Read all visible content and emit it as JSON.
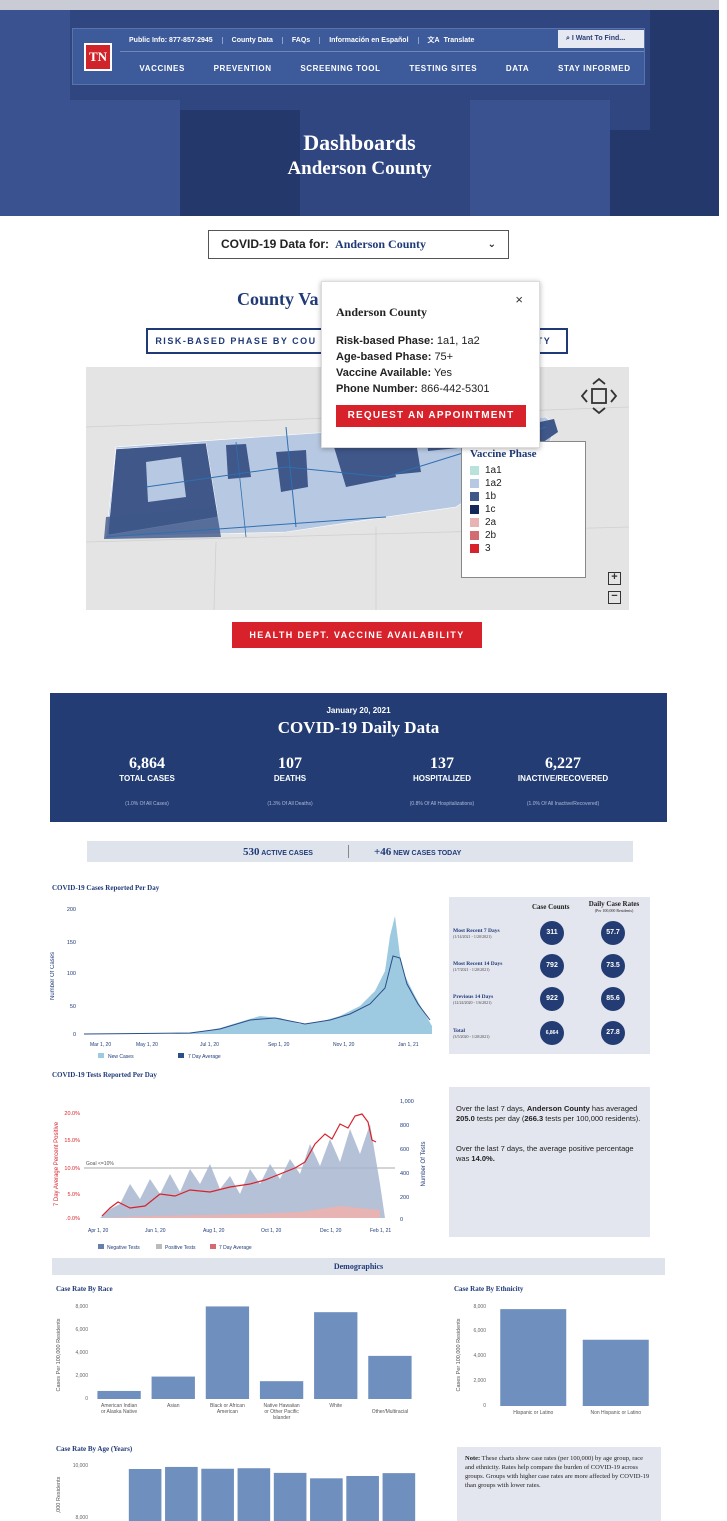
{
  "header": {
    "logo": "TN",
    "util": [
      "Public Info: 877-857-2945",
      "County Data",
      "FAQs",
      "Información en Español",
      "Translate"
    ],
    "find": "I Want To Find...",
    "nav": [
      "VACCINES",
      "PREVENTION",
      "SCREENING TOOL",
      "TESTING SITES",
      "DATA",
      "STAY INFORMED"
    ],
    "title": "Dashboards",
    "subtitle": "Anderson County"
  },
  "county_select": {
    "label": "COVID-19 Data for:",
    "value": "Anderson County"
  },
  "vaccine": {
    "title": "County Va",
    "btn1": "RISK-BASED PHASE BY COU",
    "btn2": "TY",
    "legend_title": "Vaccine Phase",
    "legend": [
      {
        "label": "1a1",
        "color": "#b9e3da"
      },
      {
        "label": "1a2",
        "color": "#b7c9e2"
      },
      {
        "label": "1b",
        "color": "#3f5789"
      },
      {
        "label": "1c",
        "color": "#15285a"
      },
      {
        "label": "2a",
        "color": "#e7b3b3"
      },
      {
        "label": "2b",
        "color": "#d36b72"
      },
      {
        "label": "3",
        "color": "#d7222b"
      }
    ],
    "popup": {
      "title": "Anderson County",
      "rows": [
        {
          "k": "Risk-based Phase:",
          "v": "1a1, 1a2"
        },
        {
          "k": "Age-based Phase:",
          "v": "75+"
        },
        {
          "k": "Vaccine Available:",
          "v": "Yes"
        },
        {
          "k": "Phone Number:",
          "v": "866-442-5301"
        }
      ],
      "button": "REQUEST AN APPOINTMENT"
    },
    "availability_btn": "HEALTH DEPT. VACCINE AVAILABILITY"
  },
  "daily": {
    "date": "January 20, 2021",
    "title": "COVID-19 Daily Data",
    "stats": [
      {
        "n": "6,864",
        "l": "TOTAL CASES",
        "s": "(1.0% Of All Cases)"
      },
      {
        "n": "107",
        "l": "DEATHS",
        "s": "(1.3% Of All Deaths)"
      },
      {
        "n": "137",
        "l": "HOSPITALIZED",
        "s": "(0.8% Of All Hospitalizations)"
      },
      {
        "n": "6,227",
        "l": "INACTIVE/RECOVERED",
        "s": "(1.0% Of All Inactive/Recovered)"
      }
    ],
    "active_n": "530",
    "active_l": "ACTIVE CASES",
    "new_n": "+46",
    "new_l": "NEW CASES TODAY"
  },
  "cases_chart": {
    "title": "COVID-19 Cases Reported Per Day",
    "ylabel": "Number Of Cases",
    "yticks": [
      "200",
      "150",
      "100",
      "50",
      "0"
    ],
    "xticks": [
      "Mar 1, 20",
      "May 1, 20",
      "Jul 1, 20",
      "Sep 1, 20",
      "Nov 1, 20",
      "Jan 1, 21"
    ],
    "legend": [
      "New Cases",
      "7 Day Average"
    ]
  },
  "rates": {
    "h1": "Case Counts",
    "h2": "Daily Case Rates",
    "h2sub": "(Per 100,000 Residents)",
    "rows": [
      {
        "l": "Most Recent 7 Days",
        "d": "(1/14/2021 - 1/20/2021)",
        "c": "311",
        "r": "57.7"
      },
      {
        "l": "Most Recent 14 Days",
        "d": "(1/7/2021 - 1/20/2021)",
        "c": "792",
        "r": "73.5"
      },
      {
        "l": "Previous 14 Days",
        "d": "(12/24/2020 - 1/6/2021)",
        "c": "922",
        "r": "85.6"
      },
      {
        "l": "Total",
        "d": "(3/5/2020 - 1/20/2021)",
        "c": "6,864",
        "r": "27.8"
      }
    ]
  },
  "tests_chart": {
    "title": "COVID-19 Tests Reported Per Day",
    "ylabel_left": "7 Day Average Percent Positive",
    "ylabel_right": "Number Of Tests",
    "yticks_left": [
      "20.0%",
      "15.0%",
      "10.0%",
      "5.0%",
      ".0.0%"
    ],
    "yticks_right": [
      "1,000",
      "800",
      "600",
      "400",
      "200",
      "0"
    ],
    "xticks": [
      "Apr 1, 20",
      "Jun 1, 20",
      "Aug 1, 20",
      "Oct 1, 20",
      "Dec 1, 20",
      "Feb 1, 21"
    ],
    "goal": "Goal <=10%",
    "legend": [
      "Negative Tests",
      "Positive Tests",
      "7 Day Average"
    ]
  },
  "tests_note": {
    "p1a": "Over the last 7 days, ",
    "p1b": "Anderson County",
    "p1c": " has averaged ",
    "p1d": "205.0",
    "p1e": " tests per day (",
    "p1f": "266.3",
    "p1g": " tests per 100,000 residents).",
    "p2a": "Over the last 7 days, the average positive percentage was ",
    "p2b": "14.0%."
  },
  "demographics": {
    "title": "Demographics",
    "race_title": "Case Rate By Race",
    "race_ylabel": "Cases Per 100,000 Residents",
    "race_yticks": [
      "8,000",
      "6,000",
      "4,000",
      "2,000",
      "0"
    ],
    "ethnicity_title": "Case Rate By Ethnicity",
    "ethnicity_ylabel": "Cases Per 100,000 Residents",
    "ethnicity_yticks": [
      "8,000",
      "6,000",
      "4,000",
      "2,000",
      "0"
    ],
    "age_title": "Case Rate By Age (Years)",
    "age_ylabel": ",000 Residents",
    "age_yticks": [
      "10,000",
      "8,000"
    ],
    "note_b": "Note:",
    "note": " These charts show case rates (per 100,000) by age group, race and ethnicity. Rates help compare the burden of COVID-19 across groups. Groups with higher case rates are more affected by COVID-19 than groups with lower rates."
  },
  "chart_data": [
    {
      "type": "bar",
      "title": "Case Rate By Race",
      "ylabel": "Cases Per 100,000 Residents",
      "ylim": [
        0,
        8000
      ],
      "categories": [
        "American Indian or Alaska Native",
        "Asian",
        "Black or African American",
        "Native Hawaiian or Other Pacific Islander",
        "White",
        "Other/Multiracial"
      ],
      "values": [
        700,
        1950,
        8050,
        1550,
        7550,
        3750
      ]
    },
    {
      "type": "bar",
      "title": "Case Rate By Ethnicity",
      "ylabel": "Cases Per 100,000 Residents",
      "ylim": [
        0,
        8000
      ],
      "categories": [
        "Hispanic or Latino",
        "Non Hispanic or Latino"
      ],
      "values": [
        7750,
        5300
      ]
    },
    {
      "type": "bar",
      "title": "Case Rate By Age (Years)",
      "values": [
        10050,
        10450,
        10100,
        10200,
        9300,
        8250,
        8700,
        9250
      ]
    }
  ]
}
